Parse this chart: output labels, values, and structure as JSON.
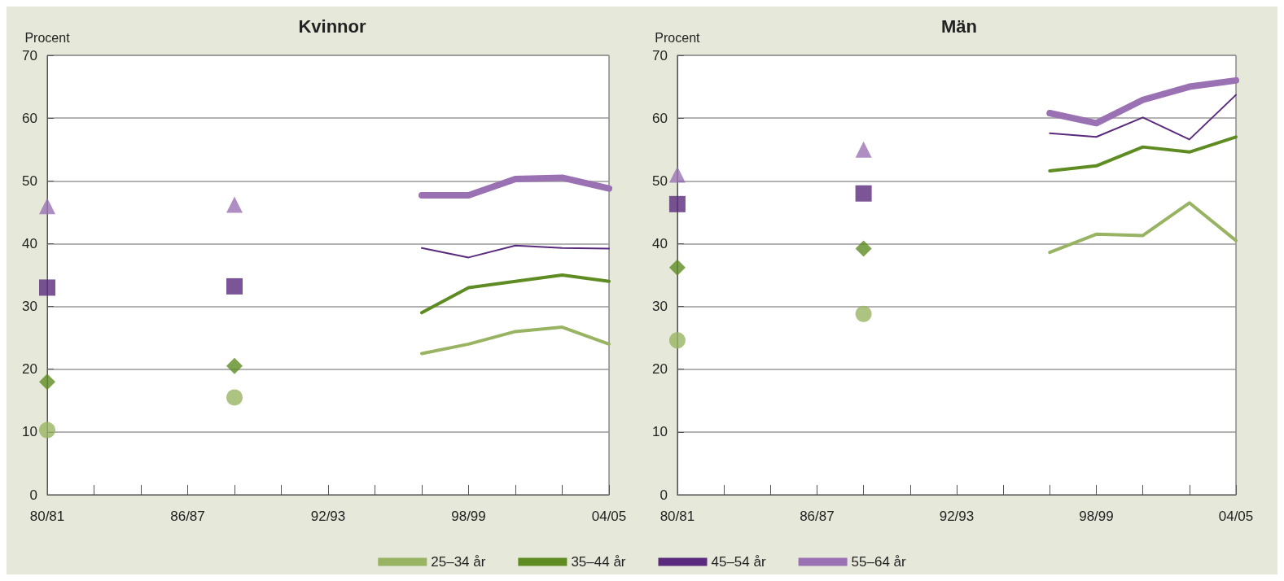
{
  "chart_data": [
    {
      "type": "line",
      "title": "Kvinnor",
      "ylabel": "Procent",
      "categories": [
        "80/81",
        null,
        null,
        "86/87",
        null,
        null,
        "92/93",
        null,
        null,
        "98/99",
        null,
        null,
        "04/05"
      ],
      "ylim": [
        0,
        70
      ],
      "yticks": [
        0,
        10,
        20,
        30,
        40,
        50,
        60,
        70
      ],
      "grid": "y",
      "legend": "bottom",
      "marker": "none",
      "line_style": "solid",
      "series": [
        {
          "name": "25–34 år",
          "color": "#98b462",
          "values": [
            null,
            null,
            null,
            null,
            null,
            null,
            null,
            null,
            22.5,
            24,
            26,
            26.7,
            24
          ]
        },
        {
          "name": "35–44 år",
          "color": "#5e8c22",
          "values": [
            null,
            null,
            null,
            null,
            null,
            null,
            null,
            null,
            29,
            33,
            34,
            35,
            34
          ]
        },
        {
          "name": "45–54 år",
          "color": "#5a2a7c",
          "values": [
            null,
            null,
            null,
            null,
            null,
            null,
            null,
            null,
            39.3,
            37.8,
            39.7,
            39.3,
            39.2
          ]
        },
        {
          "name": "55–64 år",
          "color": "#9a72b4",
          "values": [
            null,
            null,
            null,
            null,
            null,
            null,
            null,
            null,
            47.7,
            47.7,
            50.3,
            50.5,
            48.8
          ]
        },
        {
          "type": "scatter",
          "marker": "circle",
          "color": "#98b462",
          "values": [
            10.3,
            null,
            null,
            null,
            15.5,
            null,
            null,
            null,
            null,
            null,
            null,
            null,
            null
          ]
        },
        {
          "type": "scatter",
          "marker": "diamond",
          "color": "#5e8c22",
          "values": [
            18,
            null,
            null,
            null,
            20.5,
            null,
            null,
            null,
            null,
            null,
            null,
            null,
            null
          ]
        },
        {
          "type": "scatter",
          "marker": "square",
          "color": "#5a2a7c",
          "values": [
            33,
            null,
            null,
            null,
            33.2,
            null,
            null,
            null,
            null,
            null,
            null,
            null,
            null
          ]
        },
        {
          "type": "scatter",
          "marker": "triangle",
          "color": "#9a72b4",
          "values": [
            46,
            null,
            null,
            null,
            46.2,
            null,
            null,
            null,
            null,
            null,
            null,
            null,
            null
          ]
        }
      ]
    },
    {
      "type": "line",
      "title": "Män",
      "ylabel": "Procent",
      "categories": [
        "80/81",
        null,
        null,
        "86/87",
        null,
        null,
        "92/93",
        null,
        null,
        "98/99",
        null,
        null,
        "04/05"
      ],
      "ylim": [
        0,
        70
      ],
      "yticks": [
        0,
        10,
        20,
        30,
        40,
        50,
        60,
        70
      ],
      "grid": "y",
      "marker": "none",
      "line_style": "solid",
      "series": [
        {
          "color": "#98b462",
          "values": [
            null,
            null,
            null,
            null,
            null,
            null,
            null,
            null,
            38.6,
            41.5,
            41.3,
            46.5,
            40.5
          ]
        },
        {
          "color": "#5e8c22",
          "values": [
            null,
            null,
            null,
            null,
            null,
            null,
            null,
            null,
            51.6,
            52.4,
            55.4,
            54.6,
            57
          ]
        },
        {
          "color": "#5a2a7c",
          "values": [
            null,
            null,
            null,
            null,
            null,
            null,
            null,
            null,
            57.6,
            57,
            60.1,
            56.6,
            63.7
          ]
        },
        {
          "color": "#9a72b4",
          "values": [
            null,
            null,
            null,
            null,
            null,
            null,
            null,
            null,
            60.8,
            59.2,
            62.9,
            65,
            66
          ]
        },
        {
          "type": "scatter",
          "marker": "circle",
          "color": "#98b462",
          "values": [
            24.6,
            null,
            null,
            null,
            28.8,
            null,
            null,
            null,
            null,
            null,
            null,
            null,
            null
          ]
        },
        {
          "type": "scatter",
          "marker": "diamond",
          "color": "#5e8c22",
          "values": [
            36.2,
            null,
            null,
            null,
            39.2,
            null,
            null,
            null,
            null,
            null,
            null,
            null,
            null
          ]
        },
        {
          "type": "scatter",
          "marker": "square",
          "color": "#5a2a7c",
          "values": [
            46.3,
            null,
            null,
            null,
            48,
            null,
            null,
            null,
            null,
            null,
            null,
            null,
            null
          ]
        },
        {
          "type": "scatter",
          "marker": "triangle",
          "color": "#9a72b4",
          "values": [
            51,
            null,
            null,
            null,
            55,
            null,
            null,
            null,
            null,
            null,
            null,
            null,
            null
          ]
        }
      ]
    }
  ]
}
